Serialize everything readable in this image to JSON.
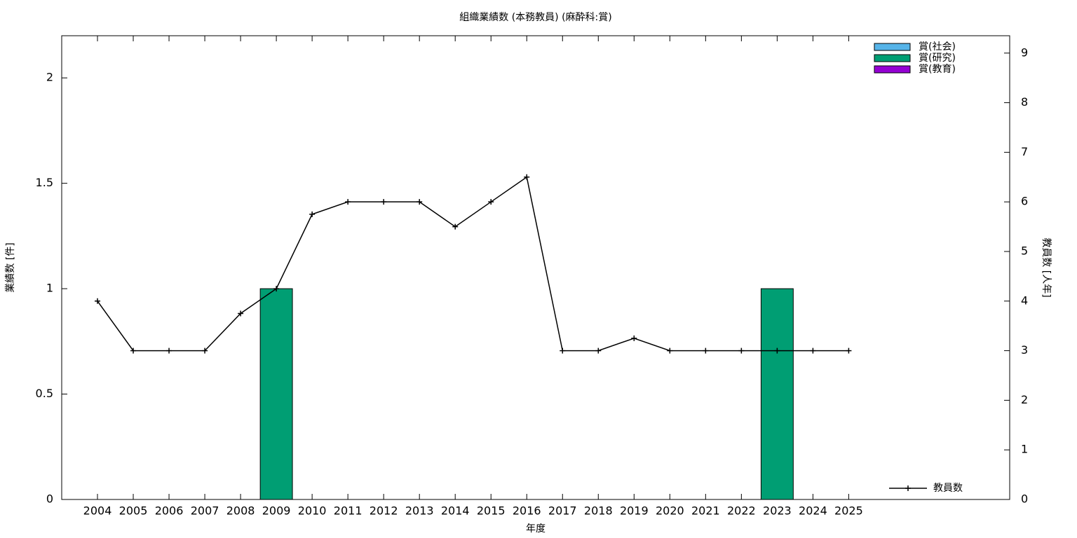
{
  "chart_data": {
    "type": "bar-line",
    "title": "組織業績数 (本務教員) (麻酔科:賞)",
    "xlabel": "年度",
    "ylabel": "業績数 [件]",
    "y2label": "教員数 [人年]",
    "x": [
      2004,
      2005,
      2006,
      2007,
      2008,
      2009,
      2010,
      2011,
      2012,
      2013,
      2014,
      2015,
      2016,
      2017,
      2018,
      2019,
      2020,
      2021,
      2022,
      2023,
      2024,
      2025
    ],
    "xlim": [
      2003,
      2029.5
    ],
    "xticks": [
      2004,
      2005,
      2006,
      2007,
      2008,
      2009,
      2010,
      2011,
      2012,
      2013,
      2014,
      2015,
      2016,
      2017,
      2018,
      2019,
      2020,
      2021,
      2022,
      2023,
      2024,
      2025
    ],
    "ylim": [
      0,
      2.2
    ],
    "yticks": [
      0,
      0.5,
      1,
      1.5,
      2
    ],
    "y2lim": [
      0,
      9.35
    ],
    "y2ticks": [
      0,
      1,
      2,
      3,
      4,
      5,
      6,
      7,
      8,
      9
    ],
    "series": [
      {
        "name": "賞(社会)",
        "type": "bar",
        "color": "#56b4e9",
        "values": [
          0,
          0,
          0,
          0,
          0,
          0,
          0,
          0,
          0,
          0,
          0,
          0,
          0,
          0,
          0,
          0,
          0,
          0,
          0,
          0,
          0,
          0
        ]
      },
      {
        "name": "賞(研究)",
        "type": "bar",
        "color": "#009e73",
        "values": [
          0,
          0,
          0,
          0,
          0,
          1,
          0,
          0,
          0,
          0,
          0,
          0,
          0,
          0,
          0,
          0,
          0,
          0,
          0,
          1,
          0,
          0
        ]
      },
      {
        "name": "賞(教育)",
        "type": "bar",
        "color": "#9400d3",
        "values": [
          0,
          0,
          0,
          0,
          0,
          0,
          0,
          0,
          0,
          0,
          0,
          0,
          0,
          0,
          0,
          0,
          0,
          0,
          0,
          0,
          0,
          0
        ]
      },
      {
        "name": "教員数",
        "type": "line",
        "axis": "y2",
        "color": "#000000",
        "values": [
          4,
          3,
          3,
          3,
          3.75,
          4.25,
          5.75,
          6,
          6,
          6,
          5.5,
          6,
          6.5,
          3,
          3,
          3.25,
          3,
          3,
          3,
          3,
          3,
          3
        ]
      }
    ],
    "legend": "top-right"
  }
}
